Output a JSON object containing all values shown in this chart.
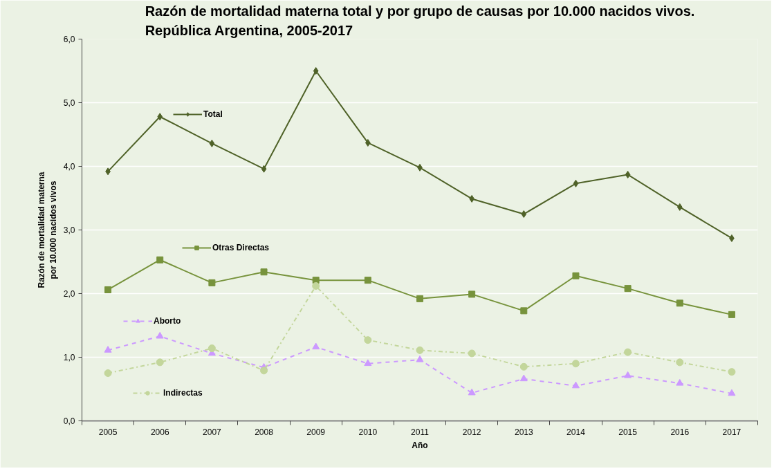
{
  "chart_data": {
    "type": "line",
    "title": "Razón de mortalidad materna total y por grupo de causas por 10.000 nacidos vivos.\nRepública Argentina, 2005-2017",
    "xlabel": "Año",
    "ylabel": "Razón de mortalidad materna\npor 10.000 nacidos vivos",
    "categories": [
      "2005",
      "2006",
      "2007",
      "2008",
      "2009",
      "2010",
      "2011",
      "2012",
      "2013",
      "2014",
      "2015",
      "2016",
      "2017"
    ],
    "ylim": [
      0,
      6
    ],
    "yticks": [
      {
        "value": 0,
        "label": "0,0"
      },
      {
        "value": 1,
        "label": "1,0"
      },
      {
        "value": 2,
        "label": "2,0"
      },
      {
        "value": 3,
        "label": "3,0"
      },
      {
        "value": 4,
        "label": "4,0"
      },
      {
        "value": 5,
        "label": "5,0"
      },
      {
        "value": 6,
        "label": "6,0"
      }
    ],
    "grid": "y",
    "legend": "left",
    "series": [
      {
        "name": "Total",
        "color": "#4f6228",
        "marker": "diamond",
        "line_style": "solid",
        "values": [
          3.92,
          4.78,
          4.36,
          3.96,
          5.5,
          4.37,
          3.98,
          3.49,
          3.25,
          3.73,
          3.87,
          3.36,
          2.87
        ]
      },
      {
        "name": "Otras Directas",
        "color": "#77933c",
        "marker": "square",
        "line_style": "solid",
        "values": [
          2.06,
          2.53,
          2.17,
          2.34,
          2.21,
          2.21,
          1.92,
          1.99,
          1.73,
          2.28,
          2.08,
          1.85,
          1.67
        ]
      },
      {
        "name": "Aborto",
        "color": "#cc99ff",
        "marker": "triangle",
        "line_style": "dashed",
        "values": [
          1.11,
          1.33,
          1.06,
          0.84,
          1.16,
          0.9,
          0.96,
          0.44,
          0.66,
          0.55,
          0.71,
          0.59,
          0.43
        ]
      },
      {
        "name": "Indirectas",
        "color": "#c3d69b",
        "marker": "circle",
        "line_style": "dashdot",
        "values": [
          0.75,
          0.92,
          1.14,
          0.79,
          2.12,
          1.27,
          1.11,
          1.06,
          0.85,
          0.9,
          1.08,
          0.92,
          0.77
        ]
      }
    ]
  }
}
